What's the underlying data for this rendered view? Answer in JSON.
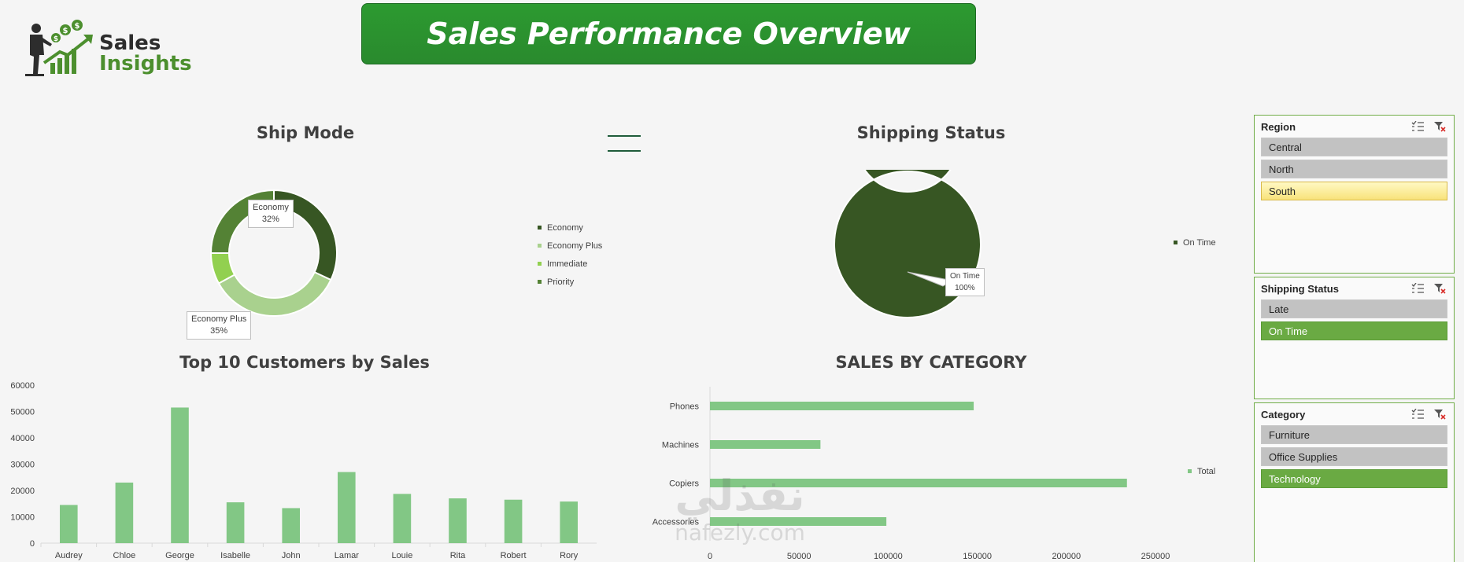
{
  "header": {
    "logo_line1": "Sales",
    "logo_line2": "Insights",
    "title": "Sales Performance Overview"
  },
  "ship_mode": {
    "title": "Ship Mode",
    "legend": [
      "Economy",
      "Economy Plus",
      "Immediate",
      "Priority"
    ],
    "callout_economy": {
      "label": "Economy",
      "value": "32%"
    },
    "callout_economy_plus": {
      "label": "Economy Plus",
      "value": "35%"
    }
  },
  "shipping_status_chart": {
    "title": "Shipping Status",
    "legend": [
      "On Time"
    ],
    "callout": {
      "label": "On Time",
      "value": "100%"
    }
  },
  "top_customers": {
    "title": "Top 10 Customers by Sales"
  },
  "sales_by_category": {
    "title": "SALES BY CATEGORY",
    "legend": "Total"
  },
  "slicers": {
    "region": {
      "title": "Region",
      "items": [
        "Central",
        "North",
        "South"
      ]
    },
    "shipping_status": {
      "title": "Shipping Status",
      "items": [
        "Late",
        "On Time"
      ]
    },
    "category": {
      "title": "Category",
      "items": [
        "Furniture",
        "Office Supplies",
        "Technology"
      ]
    }
  },
  "watermark": {
    "arabic": "نفذلي",
    "latin": "nafezly.com"
  },
  "colors": {
    "dark_green": "#375623",
    "mid_green": "#548235",
    "light_green": "#a9d18e",
    "lime": "#92d050",
    "bar_green": "#82c785",
    "banner_green": "#2c9a30",
    "selected_yellow": "#f8e27a",
    "selected_green": "#6aaa43"
  },
  "chart_data": [
    {
      "type": "pie",
      "title": "Ship Mode",
      "categories": [
        "Economy",
        "Economy Plus",
        "Immediate",
        "Priority"
      ],
      "values": [
        32,
        35,
        8,
        25
      ],
      "colors": [
        "#375623",
        "#a9d18e",
        "#92d050",
        "#548235"
      ]
    },
    {
      "type": "pie",
      "title": "Shipping Status",
      "categories": [
        "On Time"
      ],
      "values": [
        100
      ],
      "colors": [
        "#375623"
      ]
    },
    {
      "type": "bar",
      "title": "Top 10 Customers by Sales",
      "categories": [
        "Audrey",
        "Chloe",
        "George",
        "Isabelle",
        "John",
        "Lamar",
        "Louie",
        "Rita",
        "Robert",
        "Rory"
      ],
      "values": [
        14500,
        23000,
        51500,
        15500,
        13300,
        27000,
        18700,
        17000,
        16500,
        15800
      ],
      "ylim": [
        0,
        60000
      ],
      "yticks": [
        0,
        10000,
        20000,
        30000,
        40000,
        50000,
        60000
      ]
    },
    {
      "type": "bar",
      "orientation": "horizontal",
      "title": "SALES BY CATEGORY",
      "categories": [
        "Phones",
        "Machines",
        "Copiers",
        "Accessories"
      ],
      "series": [
        {
          "name": "Total",
          "values": [
            148000,
            62000,
            234000,
            99000
          ]
        }
      ],
      "xlim": [
        0,
        250000
      ],
      "xticks": [
        0,
        50000,
        100000,
        150000,
        200000,
        250000
      ]
    }
  ]
}
